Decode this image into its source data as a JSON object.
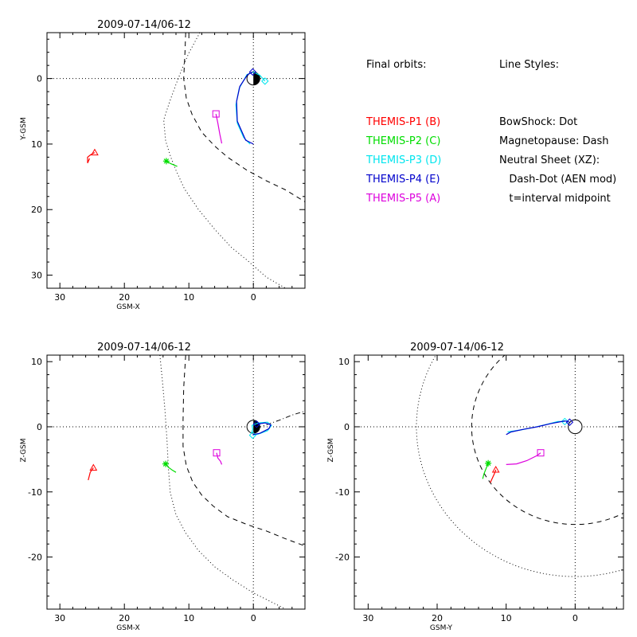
{
  "colors": {
    "P1": "#ff0000",
    "P2": "#00dd00",
    "P3": "#00e5ee",
    "P4": "#0000cc",
    "P5": "#dd00dd",
    "axes": "#000000"
  },
  "legend": {
    "orbits_title": "Final orbits:",
    "probes": [
      {
        "key": "P1",
        "label": "THEMIS-P1 (B)"
      },
      {
        "key": "P2",
        "label": "THEMIS-P2 (C)"
      },
      {
        "key": "P3",
        "label": "THEMIS-P3 (D)"
      },
      {
        "key": "P4",
        "label": "THEMIS-P4 (E)"
      },
      {
        "key": "P5",
        "label": "THEMIS-P5 (A)"
      }
    ],
    "styles_title": "Line Styles:",
    "style_lines": [
      "BowShock: Dot",
      "Magnetopause: Dash",
      "Neutral Sheet (XZ):",
      "   Dash-Dot (AEN mod)",
      "   t=interval midpoint"
    ]
  },
  "chart_data": [
    {
      "id": "xy",
      "type": "scatter",
      "title": "2009-07-14/06-12",
      "xlabel": "GSM-X",
      "ylabel": "Y-GSM",
      "xlim": [
        32,
        -8
      ],
      "ylim": [
        32,
        -7
      ],
      "x_ticks": [
        30,
        20,
        10,
        0
      ],
      "y_ticks": [
        0,
        10,
        20,
        30
      ],
      "earth": "xy",
      "bowshock": [
        [
          8.3,
          -7
        ],
        [
          10,
          -3.9
        ],
        [
          11,
          -1.6
        ],
        [
          12,
          0.9
        ],
        [
          13,
          3.6
        ],
        [
          13.9,
          6.3
        ],
        [
          13.6,
          9.5
        ],
        [
          12.8,
          12
        ],
        [
          12,
          14
        ],
        [
          10.7,
          16.8
        ],
        [
          8.5,
          20
        ],
        [
          6,
          23
        ],
        [
          3.5,
          25.7
        ],
        [
          1,
          27.7
        ],
        [
          -2,
          30.3
        ],
        [
          -5,
          32
        ]
      ],
      "magnetopause": [
        [
          10.5,
          -7
        ],
        [
          10.6,
          -4
        ],
        [
          10.8,
          0
        ],
        [
          10.4,
          3
        ],
        [
          9.5,
          5.5
        ],
        [
          8,
          8.2
        ],
        [
          6,
          10.3
        ],
        [
          4,
          12
        ],
        [
          1,
          14
        ],
        [
          -2,
          15.6
        ],
        [
          -5,
          17
        ],
        [
          -8,
          18.8
        ]
      ],
      "neutral_sheet": [],
      "series": [
        {
          "key": "P1",
          "marker": "triangle",
          "points": [
            [
              25.4,
              12.2
            ],
            [
              25.7,
              12.9
            ],
            [
              25.7,
              12
            ],
            [
              25.2,
              11.6
            ],
            [
              24.6,
              11.3
            ]
          ]
        },
        {
          "key": "P2",
          "marker": "asterisk",
          "points": [
            [
              11.8,
              13.4
            ],
            [
              12.8,
              13
            ],
            [
              13.5,
              12.6
            ]
          ]
        },
        {
          "key": "P3",
          "marker": "diamond",
          "points": [
            [
              0.5,
              10
            ],
            [
              1.5,
              9
            ],
            [
              2.5,
              6.8
            ],
            [
              2.7,
              4
            ],
            [
              2.2,
              1.5
            ],
            [
              1,
              -0.6
            ],
            [
              0,
              -1
            ],
            [
              -1,
              -0.5
            ],
            [
              -1.8,
              0.4
            ]
          ]
        },
        {
          "key": "P4",
          "marker": "diamond",
          "points": [
            [
              0,
              10
            ],
            [
              1.2,
              9.4
            ],
            [
              2.5,
              6.5
            ],
            [
              2.6,
              3.5
            ],
            [
              2.1,
              1.2
            ],
            [
              0.9,
              -0.6
            ],
            [
              0.1,
              -1
            ]
          ]
        },
        {
          "key": "P5",
          "marker": "square",
          "points": [
            [
              4.9,
              9.9
            ],
            [
              5.2,
              8.5
            ],
            [
              5.5,
              6.8
            ],
            [
              5.8,
              5.4
            ]
          ]
        }
      ]
    },
    {
      "id": "xz",
      "type": "scatter",
      "title": "2009-07-14/06-12",
      "xlabel": "GSM-X",
      "ylabel": "Z-GSM",
      "xlim": [
        32,
        -8
      ],
      "ylim": [
        -28,
        11
      ],
      "x_ticks": [
        30,
        20,
        10,
        0
      ],
      "y_ticks": [
        10,
        0,
        -10,
        -20
      ],
      "earth": "xz",
      "bowshock": [
        [
          14.5,
          11
        ],
        [
          14.1,
          7
        ],
        [
          13.7,
          2.5
        ],
        [
          13.4,
          -2
        ],
        [
          13.2,
          -6
        ],
        [
          12.9,
          -10
        ],
        [
          12,
          -13.5
        ],
        [
          10.5,
          -16.3
        ],
        [
          8.5,
          -19
        ],
        [
          6,
          -21.5
        ],
        [
          3.2,
          -23.5
        ],
        [
          0,
          -25.5
        ],
        [
          -3,
          -27
        ],
        [
          -6,
          -28.5
        ]
      ],
      "magnetopause": [
        [
          10.5,
          11
        ],
        [
          10.8,
          6
        ],
        [
          10.9,
          1
        ],
        [
          10.9,
          -3
        ],
        [
          10.4,
          -6
        ],
        [
          9.4,
          -8.5
        ],
        [
          8,
          -10.5
        ],
        [
          6.2,
          -12.2
        ],
        [
          4,
          -13.8
        ],
        [
          1,
          -15
        ],
        [
          -2,
          -16
        ],
        [
          -5,
          -17.2
        ],
        [
          -8,
          -18.3
        ]
      ],
      "neutral_sheet": [
        [
          -0.5,
          -0.2
        ],
        [
          -2,
          0.3
        ],
        [
          -4,
          1
        ],
        [
          -6,
          1.8
        ],
        [
          -8,
          2.4
        ]
      ],
      "series": [
        {
          "key": "P1",
          "marker": "triangle",
          "points": [
            [
              25.6,
              -8.2
            ],
            [
              25.3,
              -7
            ],
            [
              24.8,
              -6.3
            ]
          ]
        },
        {
          "key": "P2",
          "marker": "asterisk",
          "points": [
            [
              12,
              -7
            ],
            [
              12.5,
              -6.7
            ],
            [
              13.2,
              -6.2
            ],
            [
              13.6,
              -5.7
            ]
          ]
        },
        {
          "key": "P3",
          "marker": "diamond",
          "points": [
            [
              0.3,
              -1
            ],
            [
              0.1,
              -0.4
            ],
            [
              0.2,
              0.2
            ],
            [
              -0.8,
              0.6
            ],
            [
              -2.2,
              0.7
            ],
            [
              -2.8,
              0.2
            ],
            [
              -2.2,
              -0.6
            ],
            [
              -0.8,
              -1.1
            ],
            [
              0.1,
              -1.3
            ]
          ]
        },
        {
          "key": "P4",
          "marker": "diamond",
          "points": [
            [
              0.1,
              -1.2
            ],
            [
              -1,
              -1
            ],
            [
              -2.4,
              -0.3
            ],
            [
              -2.7,
              0.3
            ],
            [
              -1.8,
              0.6
            ],
            [
              -0.5,
              0.4
            ]
          ]
        },
        {
          "key": "P5",
          "marker": "square",
          "points": [
            [
              4.9,
              -5.8
            ],
            [
              5.1,
              -5.3
            ],
            [
              5.5,
              -4.8
            ],
            [
              5.7,
              -4
            ]
          ]
        }
      ]
    },
    {
      "id": "yz",
      "type": "scatter",
      "title": "2009-07-14/06-12",
      "xlabel": "GSM-Y",
      "ylabel": "Z-GSM",
      "xlim": [
        32,
        -7
      ],
      "ylim": [
        -28,
        11
      ],
      "x_ticks": [
        30,
        20,
        10,
        0
      ],
      "y_ticks": [
        10,
        0,
        -10,
        -20
      ],
      "earth": "yz",
      "bowshock": "circle:23",
      "magnetopause": "circle:15",
      "neutral_sheet": [],
      "series": [
        {
          "key": "P1",
          "marker": "triangle",
          "points": [
            [
              12.3,
              -8.6
            ],
            [
              12,
              -7.9
            ],
            [
              11.7,
              -7.2
            ],
            [
              11.5,
              -6.6
            ]
          ]
        },
        {
          "key": "P2",
          "marker": "asterisk",
          "points": [
            [
              13.4,
              -8
            ],
            [
              13.2,
              -7.2
            ],
            [
              12.9,
              -6.4
            ],
            [
              12.6,
              -5.6
            ]
          ]
        },
        {
          "key": "P3",
          "marker": "diamond",
          "points": [
            [
              9.8,
              -0.8
            ],
            [
              8,
              -0.5
            ],
            [
              6,
              -0.1
            ],
            [
              4,
              0.4
            ],
            [
              2.5,
              0.8
            ],
            [
              1.5,
              0.8
            ]
          ]
        },
        {
          "key": "P4",
          "marker": "diamond",
          "points": [
            [
              10,
              -1.2
            ],
            [
              9.3,
              -0.8
            ],
            [
              7.5,
              -0.4
            ],
            [
              5.5,
              0
            ],
            [
              3.5,
              0.5
            ],
            [
              1.5,
              0.9
            ],
            [
              0.8,
              0.7
            ]
          ]
        },
        {
          "key": "P5",
          "marker": "square",
          "points": [
            [
              10,
              -5.8
            ],
            [
              8.5,
              -5.7
            ],
            [
              7,
              -5.2
            ],
            [
              5.5,
              -4.4
            ],
            [
              5,
              -4
            ]
          ]
        }
      ]
    }
  ]
}
